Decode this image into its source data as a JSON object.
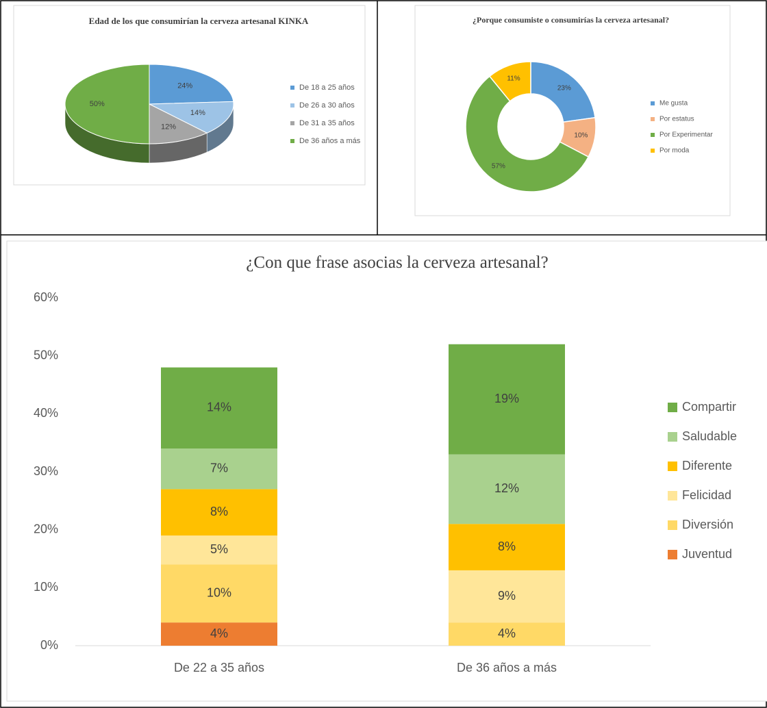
{
  "chart_data": [
    {
      "type": "pie",
      "three_d": true,
      "title": "Edad de los que consumirían la  cerveza artesanal KINKA",
      "categories": [
        "De 18 a 25 años",
        "De 26 a 30 años",
        "De 31 a 35 años",
        "De 36 años a más"
      ],
      "values": [
        24,
        14,
        12,
        50
      ],
      "value_labels": [
        "24%",
        "14%",
        "12%",
        "50%"
      ],
      "colors": [
        "#5b9bd5",
        "#9dc3e6",
        "#a5a5a5",
        "#70ad47"
      ]
    },
    {
      "type": "donut",
      "title": "¿Porque consumiste o consumirías la cerveza artesanal?",
      "categories": [
        "Me gusta",
        "Por estatus",
        "Por Experimentar",
        "Por moda"
      ],
      "values": [
        23,
        10,
        57,
        11
      ],
      "value_labels": [
        "23%",
        "10%",
        "57%",
        "11%"
      ],
      "colors": [
        "#5b9bd5",
        "#f4b183",
        "#70ad47",
        "#ffc000"
      ]
    },
    {
      "type": "bar",
      "stacked": true,
      "grid": false,
      "title": "¿Con que frase asocias la cerveza artesanal?",
      "categories": [
        "De 22 a 35 años",
        "De 36 años a más"
      ],
      "ylim": [
        0,
        60
      ],
      "yticks": [
        {
          "value": 0,
          "label": "0%"
        },
        {
          "value": 10,
          "label": "10%"
        },
        {
          "value": 20,
          "label": "20%"
        },
        {
          "value": 30,
          "label": "30%"
        },
        {
          "value": 40,
          "label": "40%"
        },
        {
          "value": 50,
          "label": "50%"
        },
        {
          "value": 60,
          "label": "60%"
        }
      ],
      "series": [
        {
          "name": "Juventud",
          "color": "#ed7d31",
          "values": [
            4,
            null
          ],
          "value_labels": [
            "4%",
            null
          ]
        },
        {
          "name": "Diversión",
          "color": "#ffd966",
          "values": [
            10,
            4
          ],
          "value_labels": [
            "10%",
            "4%"
          ]
        },
        {
          "name": "Felicidad",
          "color": "#ffe699",
          "values": [
            5,
            9
          ],
          "value_labels": [
            "5%",
            "9%"
          ]
        },
        {
          "name": "Diferente",
          "color": "#ffc000",
          "values": [
            8,
            8
          ],
          "value_labels": [
            "8%",
            "8%"
          ]
        },
        {
          "name": "Saludable",
          "color": "#a9d18e",
          "values": [
            7,
            12
          ],
          "value_labels": [
            "7%",
            "12%"
          ]
        },
        {
          "name": "Compartir",
          "color": "#70ad47",
          "values": [
            14,
            19
          ],
          "value_labels": [
            "14%",
            "19%"
          ]
        }
      ]
    }
  ]
}
